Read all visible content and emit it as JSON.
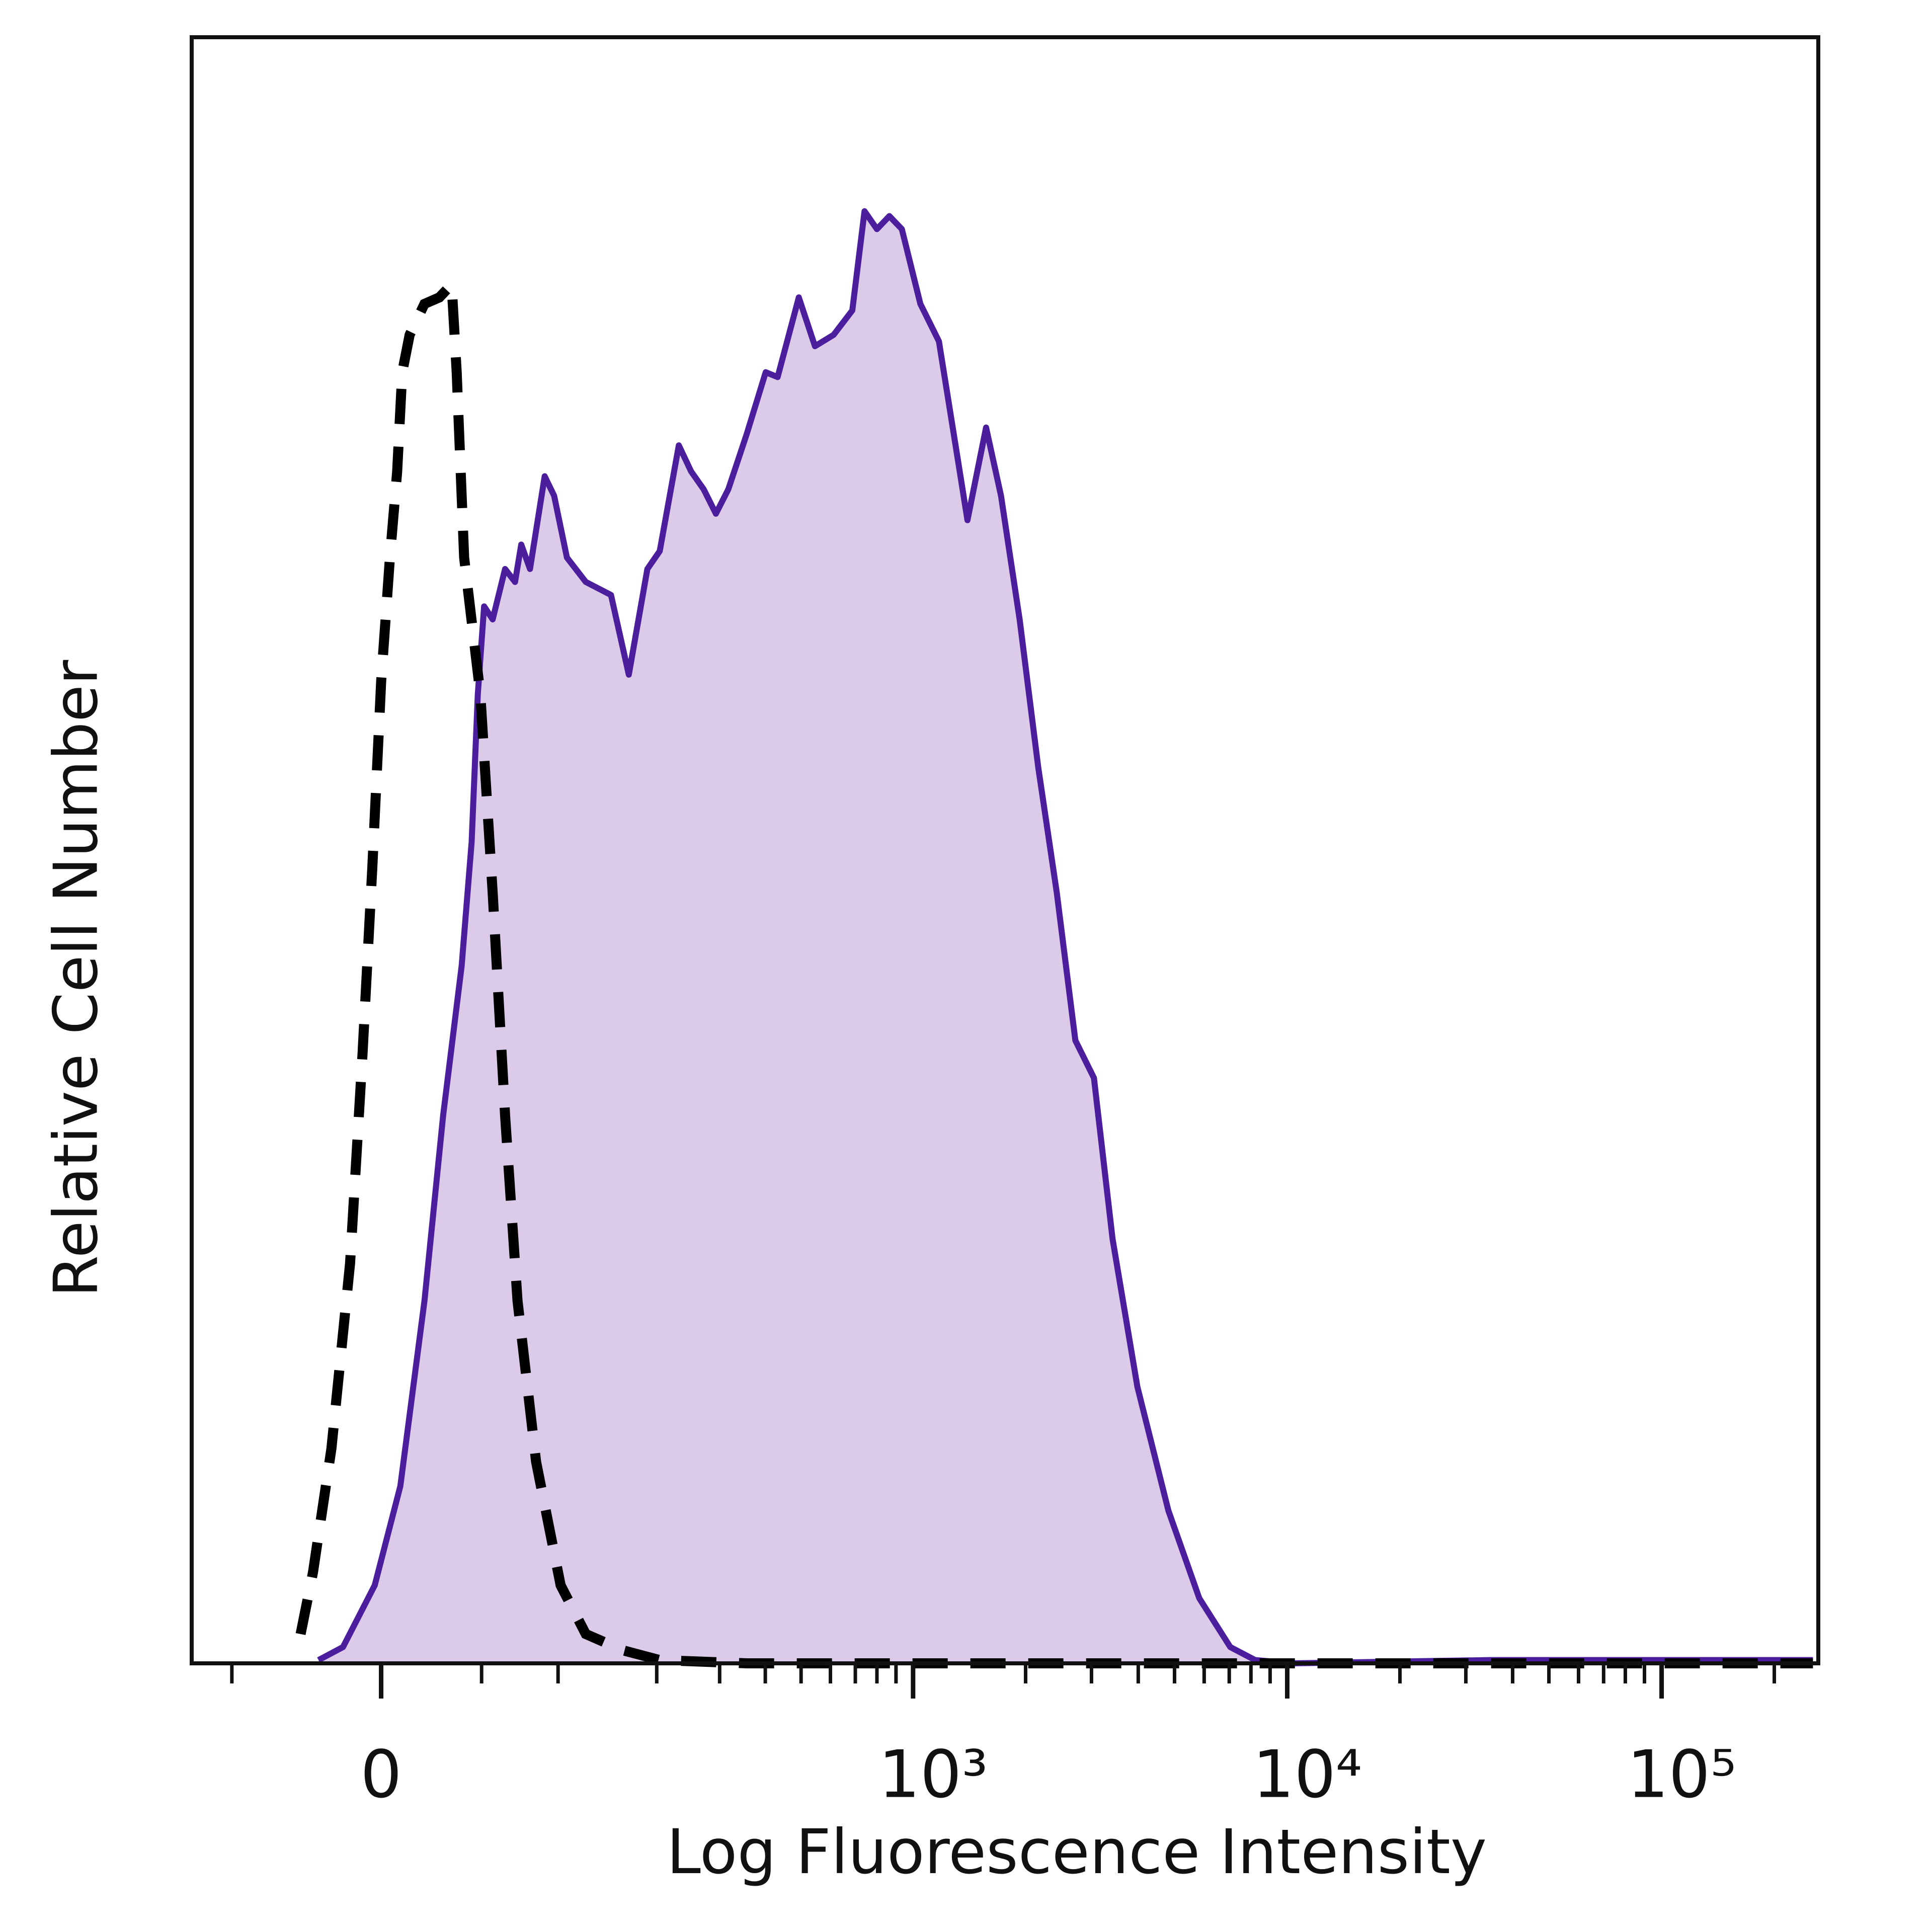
{
  "chart_data": {
    "type": "histogram-overlay",
    "xlabel": "Log Fluorescence Intensity",
    "ylabel": "Relative Cell Number",
    "xscale": "asinh",
    "xlim": [
      -110,
      262144
    ],
    "ylim": [
      0,
      100
    ],
    "xticks": [
      0,
      {
        "value": 1000,
        "label": "10³"
      },
      {
        "value": 10000,
        "label": "10⁴"
      },
      {
        "value": 100000,
        "label": "10⁵"
      }
    ],
    "xminorticks": [
      -80,
      50,
      100,
      200,
      300,
      400,
      500,
      600,
      700,
      800,
      900,
      2000,
      3000,
      4000,
      5000,
      6000,
      7000,
      8000,
      9000,
      20000,
      30000,
      40000,
      50000,
      60000,
      70000,
      80000,
      90000,
      200000
    ],
    "series": [
      {
        "style": "filled",
        "color": "#4b1e9e",
        "fill": "#dccbe8",
        "x": [
          -30,
          -18,
          -3,
          9,
          20.5,
          29.7,
          39.2,
          44.5,
          47.9,
          51.4,
          56.3,
          63.7,
          69.9,
          73.9,
          79.7,
          90,
          97,
          107,
          123,
          147,
          166,
          188,
          204,
          231,
          250,
          271,
          293,
          317,
          356,
          401,
          432,
          493,
          545,
          612,
          687,
          741,
          800,
          864,
          933,
          1046,
          1173,
          1316,
          1398,
          1568,
          1719,
          1928,
          2162,
          2423,
          2717,
          3046,
          3415,
          3979,
          4814,
          5822,
          7045,
          8208,
          10321,
          34941,
          253700
        ],
        "values": [
          0.2,
          1.0,
          4.8,
          10.9,
          22.3,
          33.7,
          42.9,
          50.5,
          59.6,
          65.0,
          64.2,
          67.3,
          66.5,
          68.8,
          67.3,
          73.0,
          71.8,
          68.0,
          66.5,
          65.7,
          60.8,
          67.3,
          68.4,
          74.9,
          73.3,
          72.2,
          70.7,
          72.2,
          75.6,
          79.4,
          79.1,
          84.0,
          81.0,
          81.7,
          83.2,
          89.3,
          88.2,
          89.0,
          88.2,
          83.6,
          81.3,
          74.1,
          70.3,
          76.0,
          71.8,
          64.2,
          55.1,
          47.4,
          38.3,
          36.0,
          26.1,
          17.0,
          9.4,
          4.0,
          1.0,
          0.2,
          0,
          0.2,
          0.2
        ]
      },
      {
        "style": "dashed",
        "color": "#000000",
        "x": [
          -39.2,
          -32.8,
          -23.6,
          -14.6,
          -8.7,
          -4.1,
          0,
          4.1,
          7.5,
          9.9,
          13.4,
          20.5,
          27.8,
          34.0,
          36.6,
          40.5,
          49.3,
          56.3,
          63.7,
          71.5,
          83.9,
          102,
          123,
          159.5,
          204,
          356,
          253700
        ],
        "values": [
          1.8,
          5.6,
          13.2,
          24.6,
          37.5,
          49.0,
          60.4,
          68.0,
          73.3,
          79.4,
          81.7,
          83.6,
          84.0,
          84.8,
          79.4,
          68.0,
          59.6,
          47.4,
          33.7,
          22.3,
          12.4,
          4.8,
          1.8,
          0.8,
          0.2,
          0,
          0
        ]
      }
    ]
  }
}
